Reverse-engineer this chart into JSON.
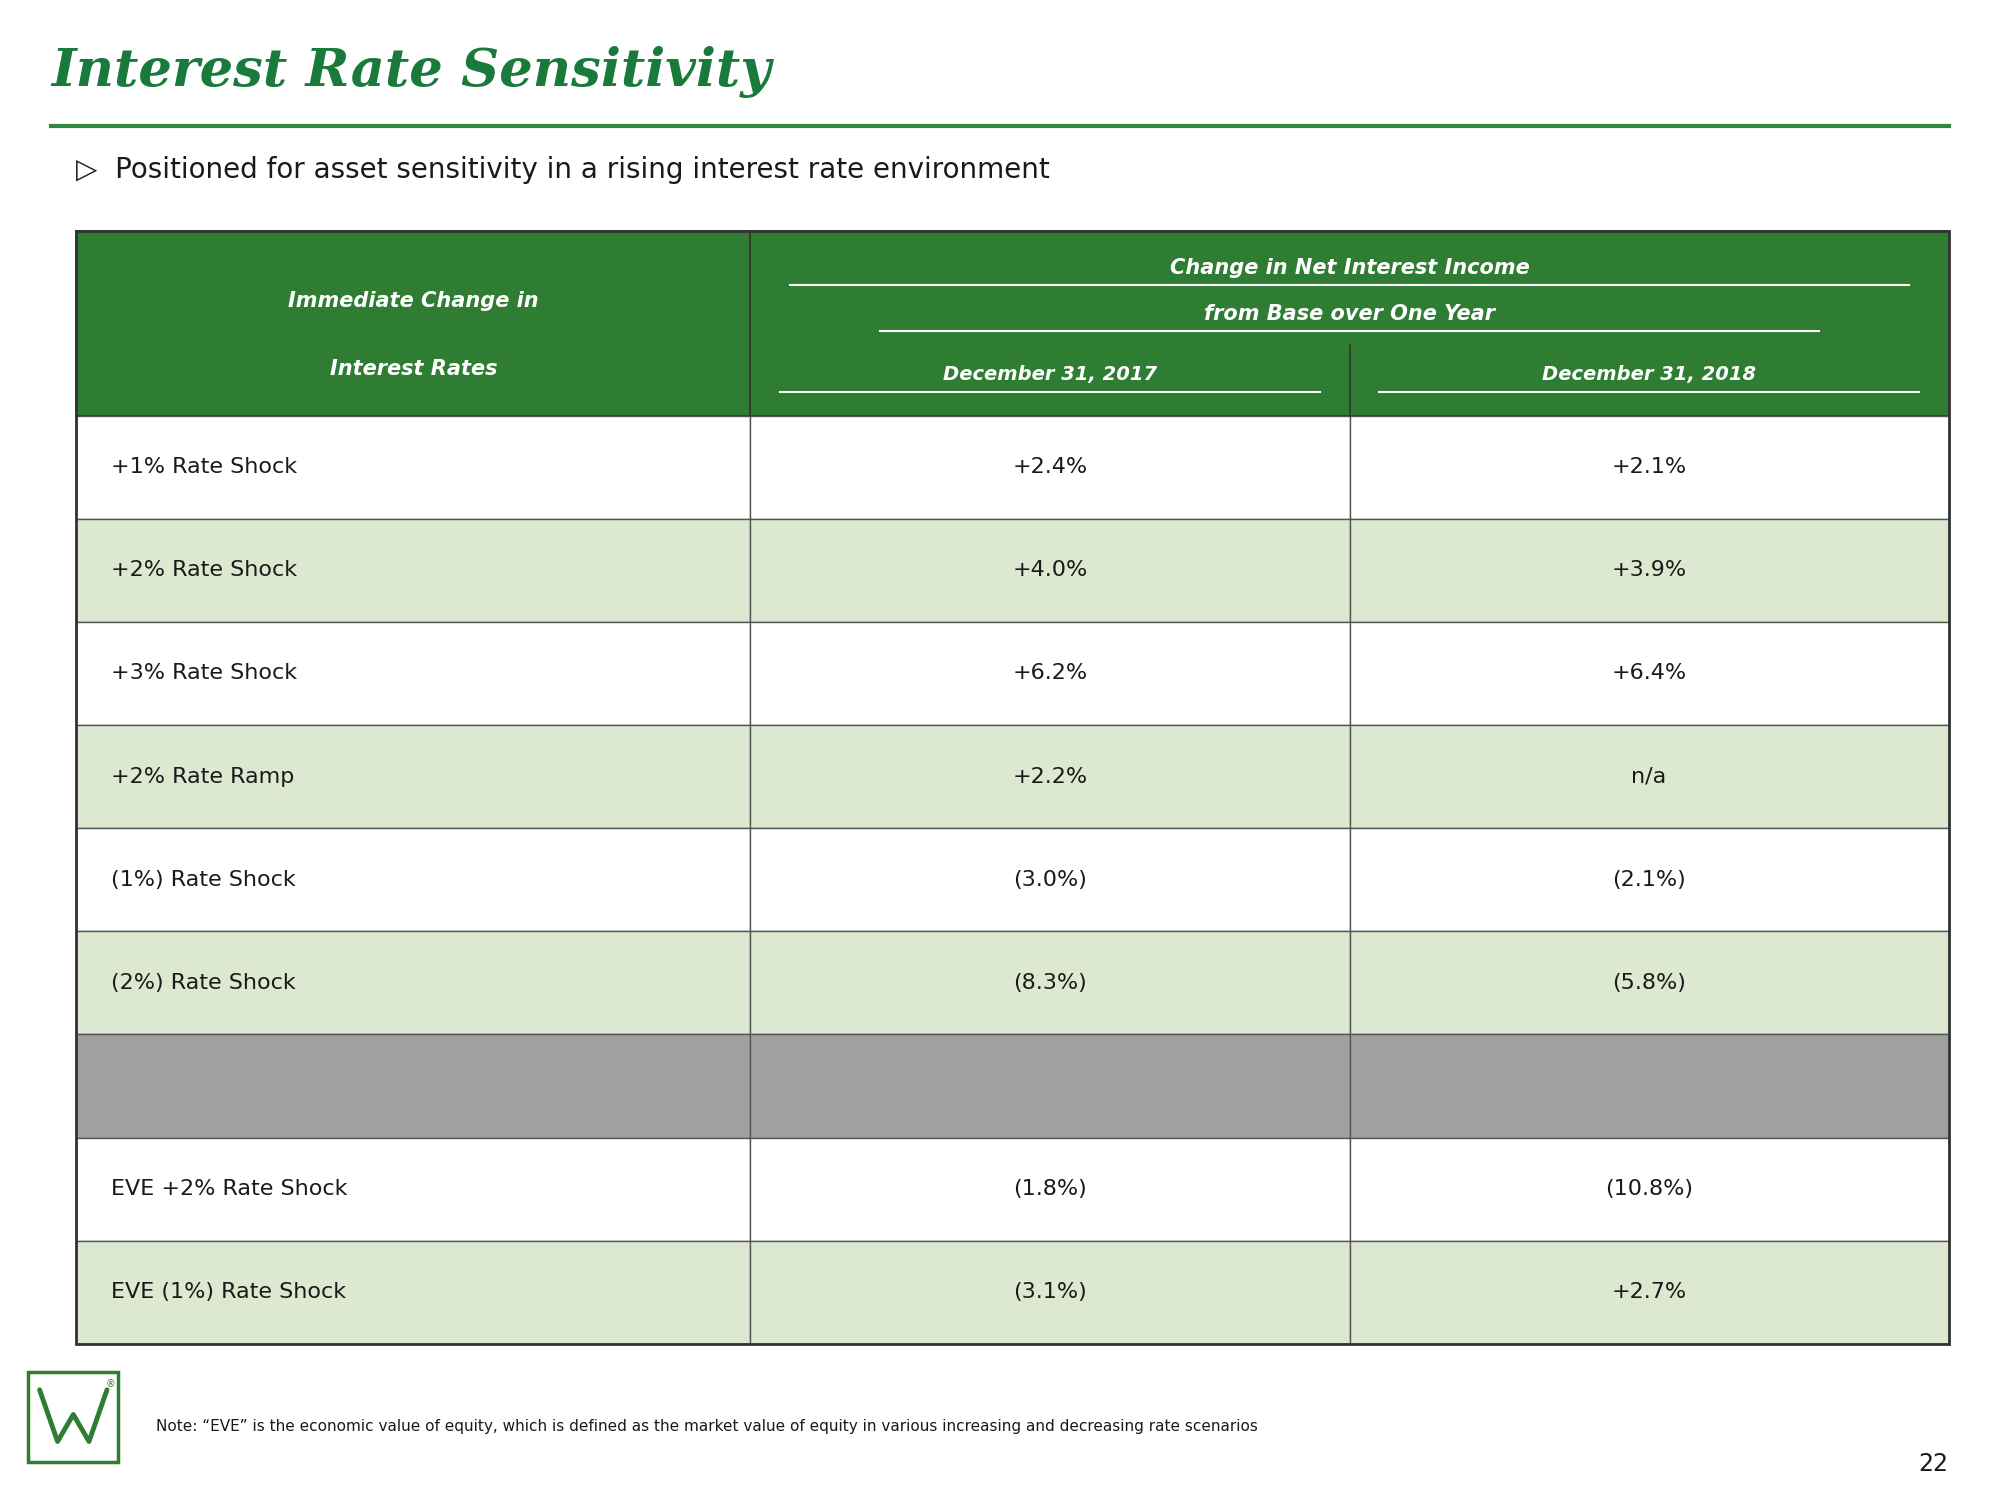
{
  "title": "Interest Rate Sensitivity",
  "subtitle": "Positioned for asset sensitivity in a rising interest rate environment",
  "title_color": "#1a7a3c",
  "title_underline_color": "#2e8b3e",
  "header_bg": "#2e7d32",
  "header_text_color": "#ffffff",
  "row_colors": {
    "white": "#ffffff",
    "light_green": "#dce8d0",
    "gray": "#a0a0a0"
  },
  "col_header_line1": "Change in Net Interest Income",
  "col_header_line2": "from Base over One Year",
  "col_header_dec2017": "December 31, 2017",
  "col_header_dec2018": "December 31, 2018",
  "rows": [
    {
      "label": "+1% Rate Shock",
      "dec2017": "+2.4%",
      "dec2018": "+2.1%",
      "bg": "white"
    },
    {
      "label": "+2% Rate Shock",
      "dec2017": "+4.0%",
      "dec2018": "+3.9%",
      "bg": "light_green"
    },
    {
      "label": "+3% Rate Shock",
      "dec2017": "+6.2%",
      "dec2018": "+6.4%",
      "bg": "white"
    },
    {
      "label": "+2% Rate Ramp",
      "dec2017": "+2.2%",
      "dec2018": "n/a",
      "bg": "light_green"
    },
    {
      "label": "(1%) Rate Shock",
      "dec2017": "(3.0%)",
      "dec2018": "(2.1%)",
      "bg": "white"
    },
    {
      "label": "(2%) Rate Shock",
      "dec2017": "(8.3%)",
      "dec2018": "(5.8%)",
      "bg": "light_green"
    },
    {
      "label": "",
      "dec2017": "",
      "dec2018": "",
      "bg": "gray"
    },
    {
      "label": "EVE +2% Rate Shock",
      "dec2017": "(1.8%)",
      "dec2018": "(10.8%)",
      "bg": "white"
    },
    {
      "label": "EVE (1%) Rate Shock",
      "dec2017": "(3.1%)",
      "dec2018": "+2.7%",
      "bg": "light_green"
    }
  ],
  "note_text": "Note: “EVE” is the economic value of equity, which is defined as the market value of equity in various increasing and decreasing rate scenarios",
  "page_number": "22",
  "wesbanco_logo_color": "#2e7d32"
}
